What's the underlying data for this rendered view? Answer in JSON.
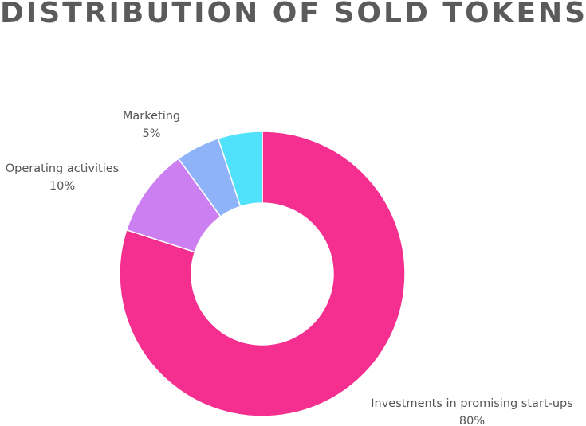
{
  "chart_data": {
    "type": "pie",
    "title": "DISTRIBUTION OF SOLD TOKENS",
    "donut": true,
    "slices": [
      {
        "name": "Investments in promising start-ups",
        "value": 80,
        "value_label": "80%",
        "color": "#f42f8f"
      },
      {
        "name": "Operating activities",
        "value": 10,
        "value_label": "10%",
        "color": "#cc7ff0"
      },
      {
        "name": "Marketing",
        "value": 5,
        "value_label": "5%",
        "color": "#8eb3f9"
      },
      {
        "name": "",
        "value": 5,
        "value_label": "",
        "color": "#51e2fb"
      }
    ]
  }
}
